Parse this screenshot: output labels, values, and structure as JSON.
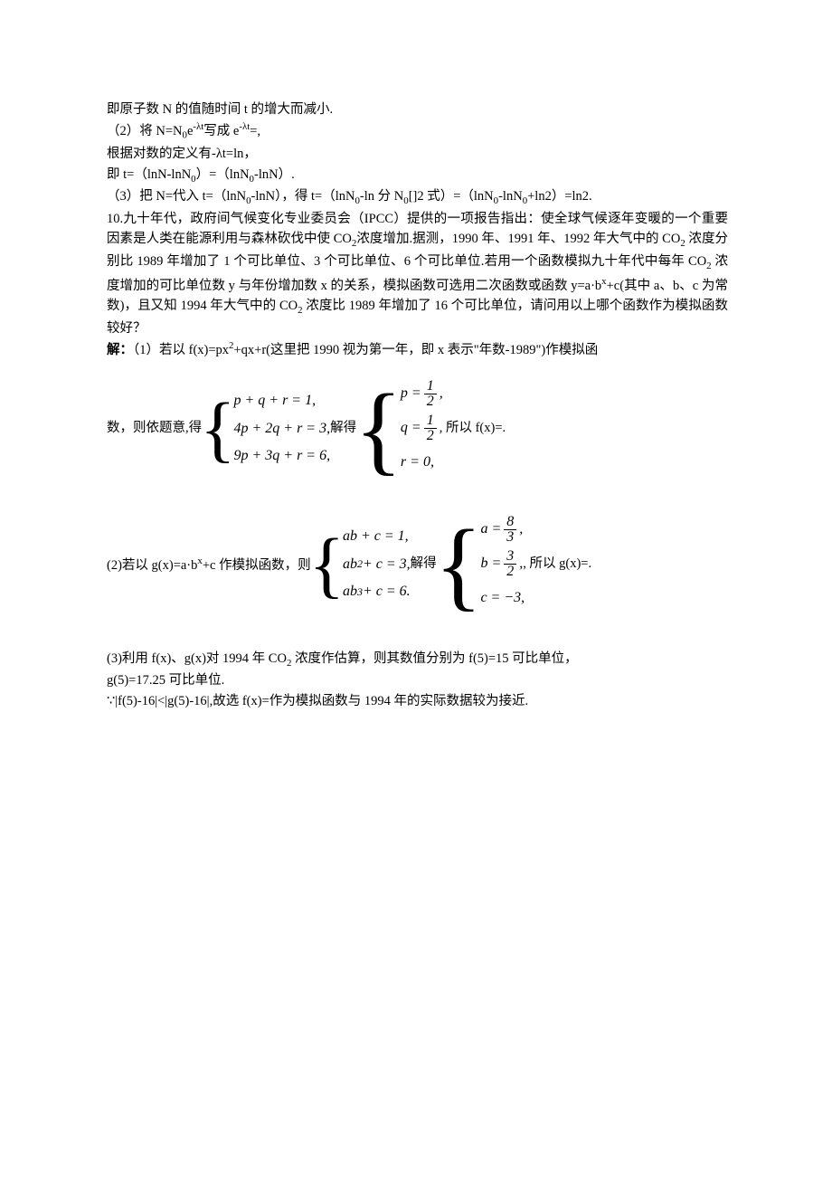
{
  "l1": "即原子数 N 的值随时间 t 的增大而减小.",
  "l2a": "（2）将 N=N",
  "l2b": "e",
  "l2c": "写成 e",
  "l2d": "=,",
  "l3": "根据对数的定义有-λt=ln，",
  "l4a": "即 t=（lnN-lnN",
  "l4b": "）=（lnN",
  "l4c": "-lnN）.",
  "l5a": "（3）把 N=代入 t=（lnN",
  "l5b": "-lnN），得 t=（lnN",
  "l5c": "-ln 分 N",
  "l5d": "[]2 式）=（lnN",
  "l5e": "-lnN",
  "l5f": "+ln2）=ln2.",
  "l6": "10.九十年代，政府间气候变化专业委员会（IPCC）提供的一项报告指出：使全球气候逐年变暖的一个重要因素是人类在能源利用与森林砍伐中使 CO",
  "l6b": "浓度增加.据测，1990 年、1991 年、1992 年大气中的 CO",
  "l6c": " 浓度分别比 1989 年增加了 1 个可比单位、3 个可比单位、6 个可比单位.若用一个函数模拟九十年代中每年 CO",
  "l6d": " 浓度增加的可比单位数 y 与年份增加数 x 的关系，模拟函数可选用二次函数或函数 y=a·b",
  "l6e": "+c(其中 a、b、c 为常数)，且又知 1994 年大气中的 CO",
  "l6f": " 浓度比 1989 年增加了 16 个可比单位，请问用以上哪个函数作为模拟函数较好？",
  "l7a": "解：",
  "l7b": "（1）若以 f(x)=px",
  "l7c": "+qx+r(这里把 1990 视为第一年，即 x 表示\"年数-1989\")作模拟函",
  "eq1_lead": "数，则依题意,得",
  "eq1_s1": "p + q + r = 1,",
  "eq1_s2": "4p + 2q + r = 3,",
  "eq1_s3": "9p + 3q + r = 6,",
  "eq1_mid": "解得",
  "eq1_p": "p =",
  "eq1_q": "q =",
  "eq1_r": "r = 0,",
  "eq1_tail": ", 所以 f(x)=.",
  "frac_1": "1",
  "frac_2": "2",
  "l8a": "(2)若以 g(x)=a·b",
  "l8b": "+c 作模拟函数，则",
  "eq2_s1": "ab + c = 1,",
  "eq2_s2a": "ab",
  "eq2_s2b": " + c = 3,",
  "eq2_s3a": "ab",
  "eq2_s3b": " + c = 6.",
  "eq2_mid": "解得",
  "eq2_a": "a =",
  "eq2_b": "b =",
  "eq2_c": "c = −3,",
  "frac_8": "8",
  "frac_3": "3",
  "eq2_tail": ", 所以 g(x)=.",
  "l9a": "(3)利用 f(x)、g(x)对 1994 年 CO",
  "l9b": " 浓度作估算，则其数值分别为 f(5)=15 可比单位，",
  "l10": "g(5)=17.25 可比单位.",
  "l11": "∵|f(5)-16|<|g(5)-16|,故选 f(x)=作为模拟函数与 1994 年的实际数据较为接近.",
  "sub0": "0",
  "sub2": "2",
  "sup_x": "x",
  "sup_2": "2",
  "sup_3": "3",
  "sup_neg_lt": "-λt"
}
